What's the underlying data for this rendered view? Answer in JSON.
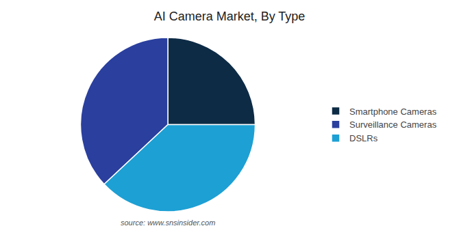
{
  "chart_data": {
    "type": "pie",
    "title": "AI Camera Market, By Type",
    "categories": [
      "Smartphone Cameras",
      "Surveillance Cameras",
      "DSLRs"
    ],
    "values": [
      25,
      37,
      38
    ],
    "colors": [
      "#0d2b45",
      "#2a3f9e",
      "#1da0d4"
    ],
    "legend": "right",
    "data_labels": false,
    "annotations": [
      "source: www.snsinsider.com"
    ]
  }
}
